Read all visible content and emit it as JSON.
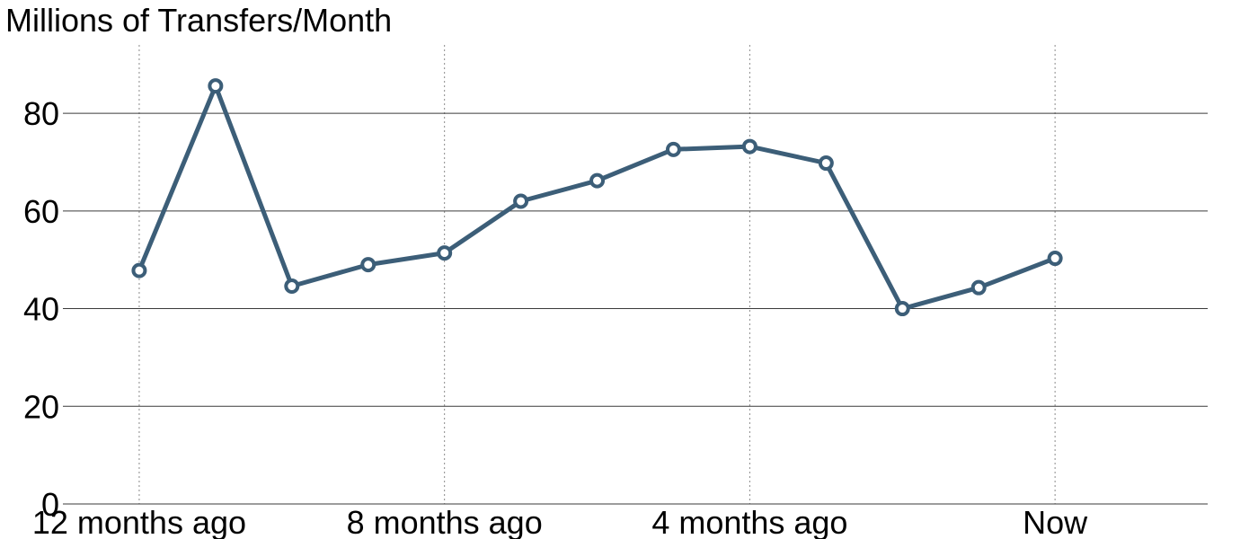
{
  "chart_data": {
    "type": "line",
    "title": "Millions of Transfers/Month",
    "xlabel": "",
    "ylabel": "",
    "x": [
      0,
      1,
      2,
      3,
      4,
      5,
      6,
      7,
      8,
      9,
      10,
      11,
      12
    ],
    "x_ticks": [
      {
        "x": 0,
        "label": "12 months ago"
      },
      {
        "x": 4,
        "label": "8 months ago"
      },
      {
        "x": 8,
        "label": "4 months ago"
      },
      {
        "x": 12,
        "label": "Now"
      }
    ],
    "series": [
      {
        "values": [
          47.8,
          85.6,
          44.6,
          49.0,
          51.4,
          62.0,
          66.2,
          72.6,
          73.2,
          69.8,
          40.0,
          44.3,
          50.3
        ],
        "color": "#3c5e78"
      }
    ],
    "xlim": [
      -1,
      14
    ],
    "ylim": [
      0,
      94
    ],
    "y_ticks": [
      0,
      20,
      40,
      60,
      80
    ],
    "grid": {
      "y": "solid",
      "x": "dotted"
    },
    "legend": "none"
  }
}
